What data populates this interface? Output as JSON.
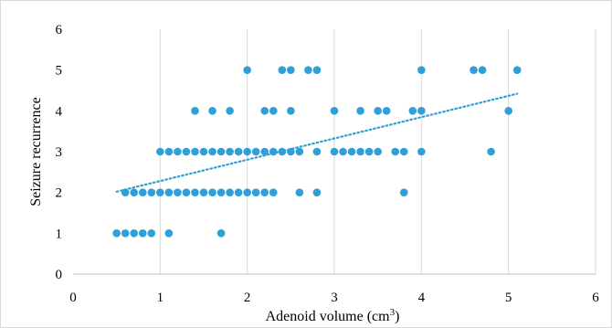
{
  "chart_data": {
    "type": "scatter",
    "xlabel": "Adenoid volume (cm",
    "xlabel_superscript": "3",
    "xlabel_suffix": ")",
    "ylabel": "Seizure recurrence",
    "xlim": [
      0,
      6
    ],
    "ylim": [
      0,
      6
    ],
    "x_ticks": [
      "0",
      "1",
      "2",
      "3",
      "4",
      "5",
      "6"
    ],
    "y_ticks": [
      "0",
      "1",
      "2",
      "3",
      "4",
      "5",
      "6"
    ],
    "grid": "vertical",
    "legend": "none",
    "marker_color": "#2E9FD8",
    "trendline": {
      "style": "dotted",
      "color": "#2E9FD8",
      "x": [
        0.5,
        5.1
      ],
      "y": [
        2.02,
        4.42
      ]
    },
    "points": [
      {
        "x": 0.5,
        "y": 1
      },
      {
        "x": 0.6,
        "y": 1
      },
      {
        "x": 0.7,
        "y": 1
      },
      {
        "x": 0.8,
        "y": 1
      },
      {
        "x": 0.9,
        "y": 1
      },
      {
        "x": 1.1,
        "y": 1
      },
      {
        "x": 1.7,
        "y": 1
      },
      {
        "x": 0.6,
        "y": 2
      },
      {
        "x": 0.7,
        "y": 2
      },
      {
        "x": 0.8,
        "y": 2
      },
      {
        "x": 0.9,
        "y": 2
      },
      {
        "x": 1.0,
        "y": 2
      },
      {
        "x": 1.1,
        "y": 2
      },
      {
        "x": 1.2,
        "y": 2
      },
      {
        "x": 1.3,
        "y": 2
      },
      {
        "x": 1.4,
        "y": 2
      },
      {
        "x": 1.5,
        "y": 2
      },
      {
        "x": 1.6,
        "y": 2
      },
      {
        "x": 1.7,
        "y": 2
      },
      {
        "x": 1.8,
        "y": 2
      },
      {
        "x": 1.9,
        "y": 2
      },
      {
        "x": 2.0,
        "y": 2
      },
      {
        "x": 2.1,
        "y": 2
      },
      {
        "x": 2.2,
        "y": 2
      },
      {
        "x": 2.3,
        "y": 2
      },
      {
        "x": 2.6,
        "y": 2
      },
      {
        "x": 2.8,
        "y": 2
      },
      {
        "x": 3.8,
        "y": 2
      },
      {
        "x": 1.0,
        "y": 3
      },
      {
        "x": 1.1,
        "y": 3
      },
      {
        "x": 1.2,
        "y": 3
      },
      {
        "x": 1.3,
        "y": 3
      },
      {
        "x": 1.4,
        "y": 3
      },
      {
        "x": 1.5,
        "y": 3
      },
      {
        "x": 1.6,
        "y": 3
      },
      {
        "x": 1.7,
        "y": 3
      },
      {
        "x": 1.8,
        "y": 3
      },
      {
        "x": 1.9,
        "y": 3
      },
      {
        "x": 2.0,
        "y": 3
      },
      {
        "x": 2.1,
        "y": 3
      },
      {
        "x": 2.2,
        "y": 3
      },
      {
        "x": 2.3,
        "y": 3
      },
      {
        "x": 2.4,
        "y": 3
      },
      {
        "x": 2.5,
        "y": 3
      },
      {
        "x": 2.6,
        "y": 3
      },
      {
        "x": 2.8,
        "y": 3
      },
      {
        "x": 3.0,
        "y": 3
      },
      {
        "x": 3.1,
        "y": 3
      },
      {
        "x": 3.2,
        "y": 3
      },
      {
        "x": 3.3,
        "y": 3
      },
      {
        "x": 3.4,
        "y": 3
      },
      {
        "x": 3.5,
        "y": 3
      },
      {
        "x": 3.7,
        "y": 3
      },
      {
        "x": 3.8,
        "y": 3
      },
      {
        "x": 4.0,
        "y": 3
      },
      {
        "x": 4.8,
        "y": 3
      },
      {
        "x": 1.4,
        "y": 4
      },
      {
        "x": 1.6,
        "y": 4
      },
      {
        "x": 1.8,
        "y": 4
      },
      {
        "x": 2.2,
        "y": 4
      },
      {
        "x": 2.3,
        "y": 4
      },
      {
        "x": 2.5,
        "y": 4
      },
      {
        "x": 3.0,
        "y": 4
      },
      {
        "x": 3.3,
        "y": 4
      },
      {
        "x": 3.5,
        "y": 4
      },
      {
        "x": 3.6,
        "y": 4
      },
      {
        "x": 3.9,
        "y": 4
      },
      {
        "x": 4.0,
        "y": 4
      },
      {
        "x": 5.0,
        "y": 4
      },
      {
        "x": 2.0,
        "y": 5
      },
      {
        "x": 2.4,
        "y": 5
      },
      {
        "x": 2.5,
        "y": 5
      },
      {
        "x": 2.7,
        "y": 5
      },
      {
        "x": 2.8,
        "y": 5
      },
      {
        "x": 4.0,
        "y": 5
      },
      {
        "x": 4.6,
        "y": 5
      },
      {
        "x": 4.7,
        "y": 5
      },
      {
        "x": 5.1,
        "y": 5
      }
    ]
  }
}
